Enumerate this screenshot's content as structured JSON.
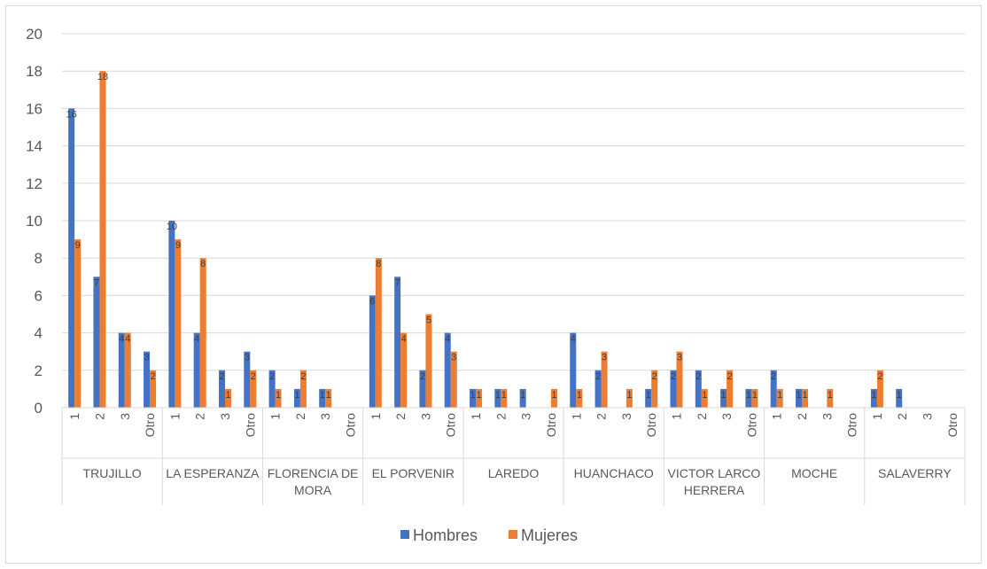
{
  "chart_data": {
    "type": "bar",
    "title": "",
    "xlabel": "",
    "ylabel": "",
    "ylim": [
      0,
      20
    ],
    "ytick_step": 2,
    "grid": true,
    "legend_position": "bottom",
    "sub_categories": [
      "1",
      "2",
      "3",
      "Otro"
    ],
    "groups": [
      {
        "name": "TRUJILLO",
        "lines": [
          "TRUJILLO"
        ]
      },
      {
        "name": "LA ESPERANZA",
        "lines": [
          "LA ESPERANZA"
        ]
      },
      {
        "name": "FLORENCIA DE MORA",
        "lines": [
          "FLORENCIA DE",
          "MORA"
        ]
      },
      {
        "name": "EL PORVENIR",
        "lines": [
          "EL PORVENIR"
        ]
      },
      {
        "name": "LAREDO",
        "lines": [
          "LAREDO"
        ]
      },
      {
        "name": "HUANCHACO",
        "lines": [
          "HUANCHACO"
        ]
      },
      {
        "name": "VICTOR LARCO HERRERA",
        "lines": [
          "VICTOR LARCO",
          "HERRERA"
        ]
      },
      {
        "name": "MOCHE",
        "lines": [
          "MOCHE"
        ]
      },
      {
        "name": "SALAVERRY",
        "lines": [
          "SALAVERRY"
        ]
      }
    ],
    "series": [
      {
        "name": "Hombres",
        "color": "#4472c4",
        "values": [
          16,
          7,
          4,
          3,
          10,
          4,
          2,
          3,
          2,
          1,
          1,
          null,
          6,
          7,
          2,
          4,
          1,
          1,
          1,
          null,
          4,
          2,
          null,
          1,
          2,
          2,
          1,
          1,
          2,
          1,
          null,
          null,
          1,
          1,
          null,
          null
        ]
      },
      {
        "name": "Mujeres",
        "color": "#ed7d31",
        "values": [
          9,
          18,
          4,
          2,
          9,
          8,
          1,
          2,
          1,
          2,
          1,
          null,
          8,
          4,
          5,
          3,
          1,
          1,
          null,
          1,
          1,
          3,
          1,
          2,
          3,
          1,
          2,
          1,
          1,
          1,
          1,
          null,
          2,
          null,
          null,
          null
        ]
      }
    ]
  }
}
